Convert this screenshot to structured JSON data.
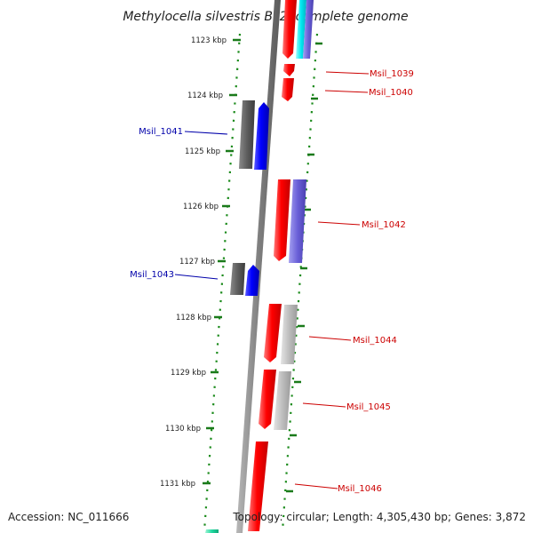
{
  "title": "Methylocella silvestris BL2, complete genome",
  "footer": {
    "accession": "Accession: NC_011666",
    "summary": "Topology: circular; Length: 4,305,430 bp; Genes: 3,872"
  },
  "ticks": [
    "1123 kbp",
    "1124 kbp",
    "1125 kbp",
    "1126 kbp",
    "1127 kbp",
    "1128 kbp",
    "1129 kbp",
    "1130 kbp",
    "1131 kbp"
  ],
  "labels": {
    "msil_1039": "Msil_1039",
    "msil_1040": "Msil_1040",
    "msil_1041": "Msil_1041",
    "msil_1042": "Msil_1042",
    "msil_1043": "Msil_1043",
    "msil_1044": "Msil_1044",
    "msil_1045": "Msil_1045",
    "msil_1046": "Msil_1046"
  },
  "colors": {
    "forward_label": "#cc0000",
    "reverse_label": "#0000aa",
    "backbone": "#808080",
    "tick_mark": "#1a7a1a"
  }
}
